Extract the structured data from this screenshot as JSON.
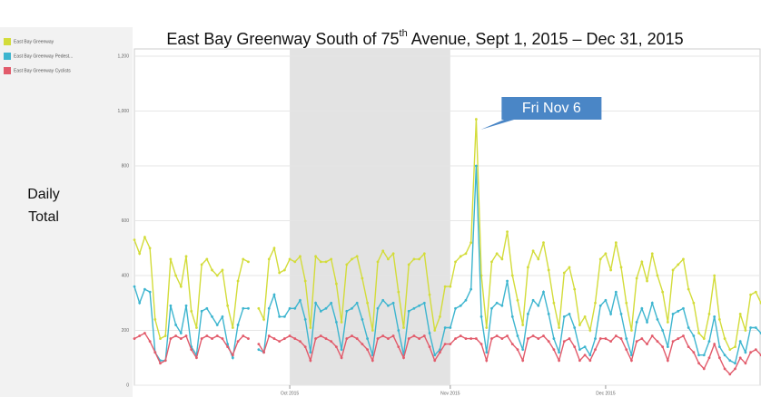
{
  "chart_data": {
    "type": "line",
    "title_parts": [
      "East Bay Greenway South of 75",
      "th",
      " Avenue, Sept 1, 2015 – Dec 31, 2015"
    ],
    "ylabel": [
      "Daily",
      "Total"
    ],
    "annotation": "Fri Nov 6",
    "annotation_x": "2015-11-06",
    "shaded_range": [
      "2015-10-01",
      "2015-11-01"
    ],
    "xlim": [
      "2015-09-01",
      "2015-12-31"
    ],
    "xticks": [
      {
        "value": "2015-10-01",
        "label": "Oct 2015"
      },
      {
        "value": "2015-11-01",
        "label": "Nov 2015"
      },
      {
        "value": "2015-12-01",
        "label": "Dec 2015"
      }
    ],
    "ylim": [
      0,
      1200
    ],
    "yticks": [
      0,
      200,
      400,
      600,
      800,
      {
        "value": 1000,
        "label": "1,000"
      },
      {
        "value": 1200,
        "label": "1,200"
      }
    ],
    "grid": true,
    "x": [
      "2015-09-01",
      "2015-09-02",
      "2015-09-03",
      "2015-09-04",
      "2015-09-05",
      "2015-09-06",
      "2015-09-07",
      "2015-09-08",
      "2015-09-09",
      "2015-09-10",
      "2015-09-11",
      "2015-09-12",
      "2015-09-13",
      "2015-09-14",
      "2015-09-15",
      "2015-09-16",
      "2015-09-17",
      "2015-09-18",
      "2015-09-19",
      "2015-09-20",
      "2015-09-21",
      "2015-09-22",
      "2015-09-23",
      "2015-09-24",
      "2015-09-25",
      "2015-09-26",
      "2015-09-27",
      "2015-09-28",
      "2015-09-29",
      "2015-09-30",
      "2015-10-01",
      "2015-10-02",
      "2015-10-03",
      "2015-10-04",
      "2015-10-05",
      "2015-10-06",
      "2015-10-07",
      "2015-10-08",
      "2015-10-09",
      "2015-10-10",
      "2015-10-11",
      "2015-10-12",
      "2015-10-13",
      "2015-10-14",
      "2015-10-15",
      "2015-10-16",
      "2015-10-17",
      "2015-10-18",
      "2015-10-19",
      "2015-10-20",
      "2015-10-21",
      "2015-10-22",
      "2015-10-23",
      "2015-10-24",
      "2015-10-25",
      "2015-10-26",
      "2015-10-27",
      "2015-10-28",
      "2015-10-29",
      "2015-10-30",
      "2015-10-31",
      "2015-11-01",
      "2015-11-02",
      "2015-11-03",
      "2015-11-04",
      "2015-11-05",
      "2015-11-06",
      "2015-11-07",
      "2015-11-08",
      "2015-11-09",
      "2015-11-10",
      "2015-11-11",
      "2015-11-12",
      "2015-11-13",
      "2015-11-14",
      "2015-11-15",
      "2015-11-16",
      "2015-11-17",
      "2015-11-18",
      "2015-11-19",
      "2015-11-20",
      "2015-11-21",
      "2015-11-22",
      "2015-11-23",
      "2015-11-24",
      "2015-11-25",
      "2015-11-26",
      "2015-11-27",
      "2015-11-28",
      "2015-11-29",
      "2015-11-30",
      "2015-12-01",
      "2015-12-02",
      "2015-12-03",
      "2015-12-04",
      "2015-12-05",
      "2015-12-06",
      "2015-12-07",
      "2015-12-08",
      "2015-12-09",
      "2015-12-10",
      "2015-12-11",
      "2015-12-12",
      "2015-12-13",
      "2015-12-14",
      "2015-12-15",
      "2015-12-16",
      "2015-12-17",
      "2015-12-18",
      "2015-12-19",
      "2015-12-20",
      "2015-12-21",
      "2015-12-22",
      "2015-12-23",
      "2015-12-24",
      "2015-12-25",
      "2015-12-26",
      "2015-12-27",
      "2015-12-28",
      "2015-12-29",
      "2015-12-30",
      "2015-12-31"
    ],
    "series": [
      {
        "name": "East Bay Greenway",
        "color": "#d3dc3a",
        "values": [
          530,
          480,
          540,
          500,
          240,
          170,
          180,
          460,
          400,
          360,
          470,
          270,
          210,
          440,
          460,
          420,
          400,
          420,
          290,
          210,
          380,
          460,
          450,
          null,
          280,
          240,
          460,
          500,
          410,
          420,
          460,
          450,
          470,
          380,
          210,
          470,
          450,
          450,
          460,
          370,
          230,
          440,
          460,
          470,
          390,
          300,
          200,
          450,
          490,
          460,
          480,
          340,
          210,
          440,
          460,
          460,
          480,
          330,
          200,
          250,
          360,
          360,
          450,
          470,
          480,
          520,
          970,
          400,
          210,
          450,
          480,
          460,
          560,
          400,
          310,
          220,
          430,
          490,
          460,
          520,
          420,
          300,
          210,
          410,
          430,
          350,
          220,
          250,
          200,
          300,
          460,
          480,
          420,
          520,
          430,
          300,
          200,
          390,
          450,
          380,
          480,
          400,
          340,
          230,
          420,
          440,
          460,
          350,
          300,
          190,
          170,
          260,
          400,
          240,
          170,
          130,
          140,
          260,
          200,
          330,
          340,
          300
        ]
      },
      {
        "name": "East Bay Greenway Pedest...",
        "color": "#3db5cf",
        "values": [
          360,
          300,
          350,
          340,
          120,
          90,
          90,
          290,
          220,
          190,
          290,
          140,
          110,
          270,
          280,
          250,
          220,
          250,
          150,
          100,
          220,
          280,
          280,
          null,
          130,
          120,
          280,
          330,
          250,
          250,
          280,
          280,
          310,
          240,
          120,
          300,
          270,
          280,
          300,
          230,
          130,
          270,
          280,
          300,
          240,
          170,
          110,
          280,
          310,
          290,
          300,
          200,
          110,
          270,
          280,
          290,
          300,
          190,
          110,
          130,
          210,
          210,
          280,
          290,
          310,
          350,
          800,
          250,
          120,
          280,
          300,
          290,
          380,
          250,
          180,
          130,
          260,
          310,
          290,
          340,
          260,
          170,
          120,
          250,
          260,
          210,
          130,
          140,
          110,
          170,
          290,
          310,
          260,
          340,
          260,
          170,
          110,
          230,
          280,
          230,
          300,
          240,
          200,
          140,
          260,
          270,
          280,
          210,
          180,
          110,
          110,
          160,
          250,
          140,
          110,
          90,
          80,
          160,
          120,
          210,
          210,
          190
        ]
      },
      {
        "name": "East Bay Greenway Cyclists",
        "color": "#e25b6b",
        "values": [
          170,
          180,
          190,
          160,
          120,
          80,
          90,
          170,
          180,
          170,
          180,
          130,
          100,
          170,
          180,
          170,
          180,
          170,
          140,
          110,
          160,
          180,
          170,
          null,
          150,
          120,
          180,
          170,
          160,
          170,
          180,
          170,
          160,
          140,
          90,
          170,
          180,
          170,
          160,
          140,
          100,
          170,
          180,
          170,
          150,
          130,
          90,
          170,
          180,
          170,
          180,
          140,
          100,
          170,
          180,
          170,
          180,
          140,
          90,
          120,
          150,
          150,
          170,
          180,
          170,
          170,
          170,
          150,
          90,
          170,
          180,
          170,
          180,
          150,
          130,
          90,
          170,
          180,
          170,
          180,
          160,
          130,
          90,
          160,
          170,
          140,
          90,
          110,
          90,
          130,
          170,
          170,
          160,
          180,
          170,
          130,
          90,
          160,
          170,
          150,
          180,
          160,
          140,
          90,
          160,
          170,
          180,
          140,
          120,
          80,
          60,
          100,
          150,
          100,
          60,
          40,
          60,
          100,
          80,
          120,
          130,
          110
        ]
      }
    ]
  }
}
